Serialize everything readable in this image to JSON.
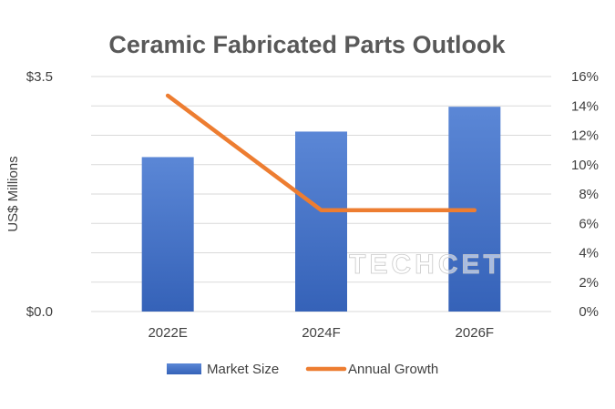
{
  "chart_data": {
    "type": "bar",
    "title": "Ceramic Fabricated Parts Outlook",
    "ylabel": "US$ Millions",
    "categories": [
      "2022E",
      "2024F",
      "2026F"
    ],
    "ylim": [
      0,
      3.5
    ],
    "y_tick_labels": [
      "$3.5",
      "$0.0"
    ],
    "y2lim": [
      0,
      16
    ],
    "y2_tick_labels": [
      "16%",
      "14%",
      "12%",
      "10%",
      "8%",
      "6%",
      "4%",
      "2%",
      "0%"
    ],
    "grid": true,
    "legend_position": "bottom",
    "series": [
      {
        "name": "Market Size",
        "type": "bar",
        "axis": "left",
        "color": "#4472C4",
        "values": [
          2.3,
          2.68,
          3.05
        ]
      },
      {
        "name": "Annual Growth",
        "type": "line",
        "axis": "right",
        "color": "#ED7D31",
        "values": [
          14.7,
          6.9,
          6.9
        ]
      }
    ]
  },
  "watermark": "TECHCET"
}
